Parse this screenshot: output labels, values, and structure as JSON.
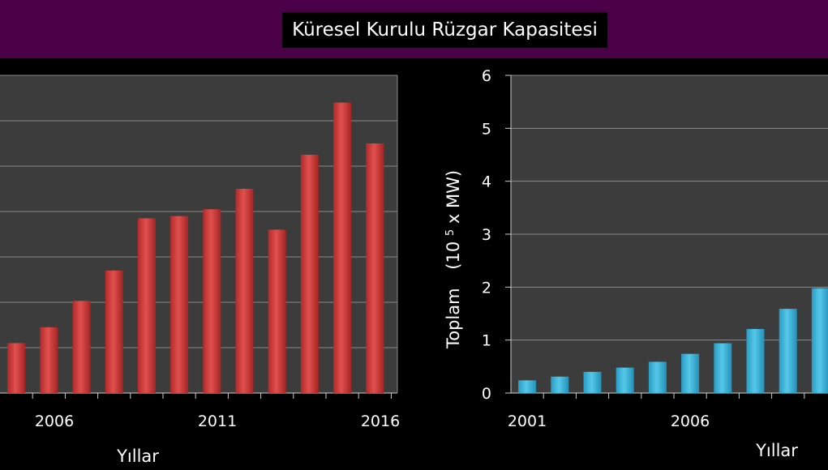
{
  "title": "Küresel Kurulu Rüzgar Kapasitesi",
  "colors": {
    "header_bg": "#4b0047",
    "left_bar": "#d9403f",
    "right_bar": "#3fb7dc",
    "plot_bg": "#3c3c3c"
  },
  "chart_data": [
    {
      "type": "bar",
      "xlabel": "Yıllar",
      "ylabel": "",
      "x_tick_labels": [
        "2006",
        "2011",
        "2016"
      ],
      "categories": [
        "2005",
        "2006",
        "2007",
        "2008",
        "2009",
        "2010",
        "2011",
        "2012",
        "2013",
        "2014",
        "2015",
        "2016"
      ],
      "values": [
        11.0,
        14.5,
        20.3,
        27.0,
        38.5,
        39.0,
        40.5,
        45.0,
        36.0,
        52.5,
        64.0,
        55.0
      ],
      "ylim": [
        0,
        70
      ],
      "grid": true
    },
    {
      "type": "bar",
      "xlabel": "Yıllar",
      "ylabel": "Toplam (10⁵ x MW)",
      "ylabel_main": "Toplam",
      "ylabel_unit_prefix": "(10",
      "ylabel_unit_sup": "5",
      "ylabel_unit_suffix": " x MW)",
      "x_tick_labels": [
        "2001",
        "2006"
      ],
      "categories": [
        "2001",
        "2002",
        "2003",
        "2004",
        "2005",
        "2006",
        "2007",
        "2008",
        "2009",
        "2010"
      ],
      "values": [
        0.24,
        0.31,
        0.4,
        0.48,
        0.59,
        0.74,
        0.94,
        1.21,
        1.59,
        1.98
      ],
      "y_ticks": [
        "0",
        "1",
        "2",
        "3",
        "4",
        "5",
        "6"
      ],
      "ylim": [
        0,
        6
      ],
      "grid": true
    }
  ]
}
